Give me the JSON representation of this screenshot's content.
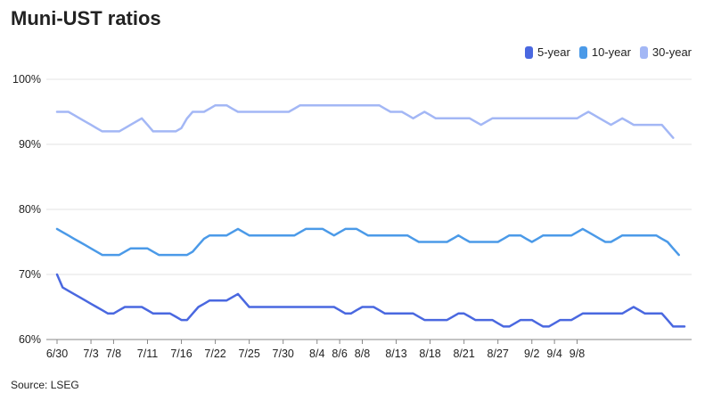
{
  "chart_data": {
    "type": "line",
    "title": "Muni-UST ratios",
    "source": "Source: LSEG",
    "x_tick_labels": [
      "6/30",
      "7/3",
      "7/8",
      "7/11",
      "7/16",
      "7/22",
      "7/25",
      "7/30",
      "8/4",
      "8/6",
      "8/8",
      "8/13",
      "8/18",
      "8/21",
      "8/27",
      "9/2",
      "9/4",
      "9/8"
    ],
    "x_tick_index": [
      0,
      6,
      10,
      16,
      22,
      28,
      34,
      40,
      46,
      50,
      54,
      60,
      66,
      72,
      78,
      84,
      88,
      92
    ],
    "y_tick_labels": [
      "60%",
      "70%",
      "80%",
      "90%",
      "100%"
    ],
    "ylim": [
      60,
      100
    ],
    "grid": true,
    "legend_position": "top-right",
    "series": [
      {
        "name": "5-year",
        "color": "#4a68e0",
        "values": [
          70,
          68,
          67.5,
          67,
          66.5,
          66,
          65.5,
          65,
          64.5,
          64,
          64,
          64.5,
          65,
          65,
          65,
          65,
          64.5,
          64,
          64,
          64,
          64,
          63.5,
          63,
          63,
          64,
          65,
          65.5,
          66,
          66,
          66,
          66,
          66.5,
          67,
          66,
          65,
          65,
          65,
          65,
          65,
          65,
          65,
          65,
          65,
          65,
          65,
          65,
          65,
          65,
          65,
          65,
          64.5,
          64,
          64,
          64.5,
          65,
          65,
          65,
          64.5,
          64,
          64,
          64,
          64,
          64,
          64,
          63.5,
          63,
          63,
          63,
          63,
          63,
          63.5,
          64,
          64,
          63.5,
          63,
          63,
          63,
          63,
          62.5,
          62,
          62,
          62.5,
          63,
          63,
          63,
          62.5,
          62,
          62,
          62.5,
          63,
          63,
          63,
          63.5,
          64,
          64,
          64,
          64,
          64,
          64,
          64,
          64,
          64.5,
          65,
          64.5,
          64,
          64,
          64,
          64,
          63,
          62,
          62,
          62
        ]
      },
      {
        "name": "10-year",
        "color": "#4b9ae8",
        "values": [
          77,
          76.5,
          76,
          75.5,
          75,
          74.5,
          74,
          73.5,
          73,
          73,
          73,
          73,
          73.5,
          74,
          74,
          74,
          74,
          73.5,
          73,
          73,
          73,
          73,
          73,
          73,
          73.5,
          74.5,
          75.5,
          76,
          76,
          76,
          76,
          76.5,
          77,
          76.5,
          76,
          76,
          76,
          76,
          76,
          76,
          76,
          76,
          76,
          76.5,
          77,
          77,
          77,
          77,
          76.5,
          76,
          76.5,
          77,
          77,
          77,
          76.5,
          76,
          76,
          76,
          76,
          76,
          76,
          76,
          76,
          75.5,
          75,
          75,
          75,
          75,
          75,
          75,
          75.5,
          76,
          75.5,
          75,
          75,
          75,
          75,
          75,
          75,
          75.5,
          76,
          76,
          76,
          75.5,
          75,
          75.5,
          76,
          76,
          76,
          76,
          76,
          76,
          76.5,
          77,
          76.5,
          76,
          75.5,
          75,
          75,
          75.5,
          76,
          76,
          76,
          76,
          76,
          76,
          76,
          75.5,
          75,
          74,
          73
        ]
      },
      {
        "name": "30-year",
        "color": "#a3b7f5",
        "values": [
          95,
          95,
          95,
          94.5,
          94,
          93.5,
          93,
          92.5,
          92,
          92,
          92,
          92,
          92.5,
          93,
          93.5,
          94,
          93,
          92,
          92,
          92,
          92,
          92,
          92.5,
          94,
          95,
          95,
          95,
          95.5,
          96,
          96,
          96,
          95.5,
          95,
          95,
          95,
          95,
          95,
          95,
          95,
          95,
          95,
          95,
          95.5,
          96,
          96,
          96,
          96,
          96,
          96,
          96,
          96,
          96,
          96,
          96,
          96,
          96,
          96,
          96,
          95.5,
          95,
          95,
          95,
          94.5,
          94,
          94.5,
          95,
          94.5,
          94,
          94,
          94,
          94,
          94,
          94,
          94,
          93.5,
          93,
          93.5,
          94,
          94,
          94,
          94,
          94,
          94,
          94,
          94,
          94,
          94,
          94,
          94,
          94,
          94,
          94,
          94,
          94.5,
          95,
          94.5,
          94,
          93.5,
          93,
          93.5,
          94,
          93.5,
          93,
          93,
          93,
          93,
          93,
          93,
          92,
          91
        ]
      }
    ]
  }
}
